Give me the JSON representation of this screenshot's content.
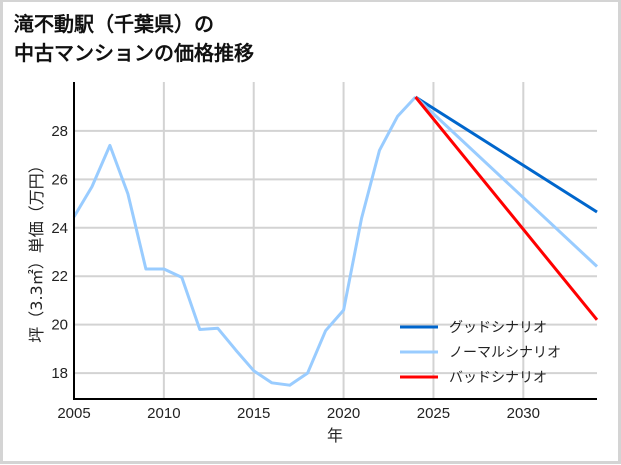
{
  "chart_data": {
    "type": "line",
    "title": "滝不動駅（千葉県）の\n中古マンションの価格推移",
    "xlabel": "年",
    "ylabel": "坪（3.3㎡）単価（万円）",
    "xlim": [
      2005,
      2034.1
    ],
    "ylim": [
      16.93,
      30.02
    ],
    "xticks": [
      2005,
      2010,
      2015,
      2020,
      2025,
      2030
    ],
    "yticks": [
      18,
      20,
      22,
      24,
      26,
      28
    ],
    "grid": true,
    "legend_position": "lower right",
    "series": [
      {
        "name": "ノーマルシナリオ",
        "role": "history",
        "color": "#99ccff",
        "x": [
          2005,
          2006,
          2007,
          2008,
          2009,
          2010,
          2011,
          2012,
          2013,
          2014,
          2015,
          2016,
          2017,
          2018,
          2019,
          2020,
          2021,
          2022,
          2023,
          2024
        ],
        "y": [
          24.45,
          25.7,
          27.4,
          25.4,
          22.3,
          22.3,
          21.95,
          19.8,
          19.85,
          18.95,
          18.1,
          17.6,
          17.5,
          18.0,
          19.75,
          20.6,
          24.4,
          27.2,
          28.6,
          29.4
        ]
      },
      {
        "name": "グッドシナリオ",
        "color": "#0066cc",
        "x": [
          2024,
          2034.1
        ],
        "y": [
          29.4,
          24.65
        ]
      },
      {
        "name": "ノーマルシナリオ",
        "color": "#99ccff",
        "x": [
          2024,
          2034.1
        ],
        "y": [
          29.4,
          22.4
        ]
      },
      {
        "name": "バッドシナリオ",
        "color": "#ff0000",
        "x": [
          2024,
          2034.1
        ],
        "y": [
          29.4,
          20.2
        ]
      }
    ]
  },
  "legend": [
    {
      "label": "グッドシナリオ",
      "color": "#0066cc"
    },
    {
      "label": "ノーマルシナリオ",
      "color": "#99ccff"
    },
    {
      "label": "バッドシナリオ",
      "color": "#ff0000"
    }
  ]
}
